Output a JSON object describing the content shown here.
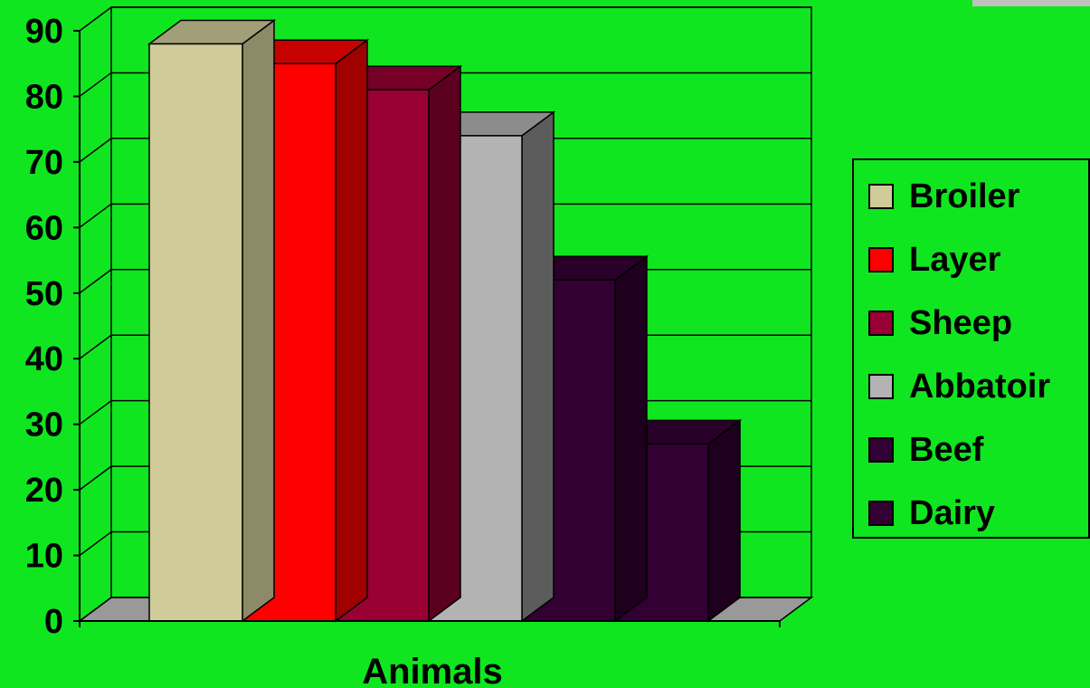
{
  "chart_data": {
    "type": "bar",
    "title": "",
    "xlabel": "Animals",
    "ylabel": "",
    "ylim": [
      0,
      90
    ],
    "yticks": [
      "0",
      "10",
      "20",
      "30",
      "40",
      "50",
      "60",
      "70",
      "80",
      "90"
    ],
    "grid": true,
    "legend_position": "right",
    "categories": [
      "Animals"
    ],
    "series": [
      {
        "name": "Broiler",
        "values": [
          88
        ],
        "color": "#cfcc99",
        "side": "#8c8a67"
      },
      {
        "name": "Layer",
        "values": [
          85
        ],
        "color": "#ff0000",
        "side": "#a00000"
      },
      {
        "name": "Sheep",
        "values": [
          81
        ],
        "color": "#990033",
        "side": "#5c001f"
      },
      {
        "name": "Abbatoir",
        "values": [
          74
        ],
        "color": "#b3b3b3",
        "side": "#5c5c5c"
      },
      {
        "name": "Beef",
        "values": [
          52
        ],
        "color": "#330033",
        "side": "#1e001e"
      },
      {
        "name": "Dairy",
        "values": [
          27
        ],
        "color": "#330033",
        "side": "#1e001e"
      }
    ]
  }
}
